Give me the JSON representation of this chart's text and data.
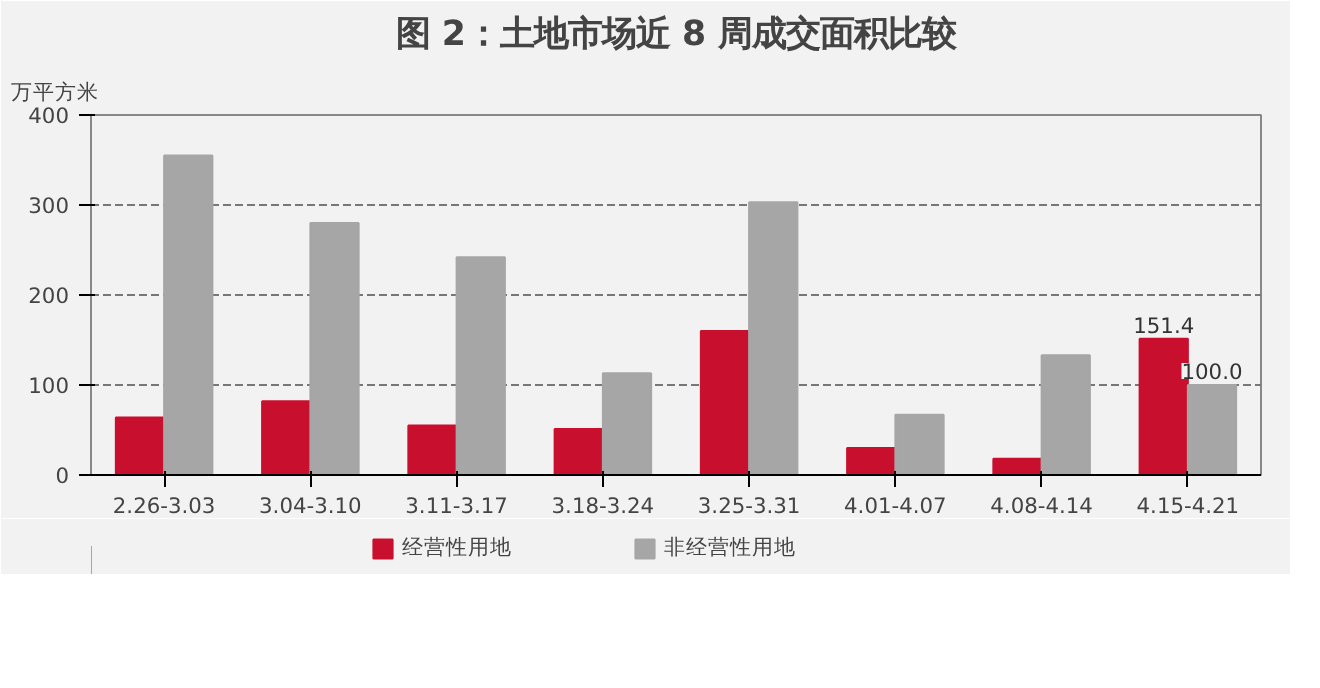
{
  "chart_data": {
    "type": "bar",
    "title": "图 2：土地市场近 8 周成交面积比较",
    "ylabel": "万平方米",
    "categories": [
      "2.26-3.03",
      "3.04-3.10",
      "3.11-3.17",
      "3.18-3.24",
      "3.25-3.31",
      "4.01-4.07",
      "4.08-4.14",
      "4.15-4.21"
    ],
    "series": [
      {
        "name": "经营性用地",
        "color": "#c8102e",
        "values": [
          64,
          82,
          55,
          51,
          160,
          30,
          18,
          151.4
        ],
        "value_labels": [
          null,
          null,
          null,
          null,
          null,
          null,
          null,
          "151.4"
        ]
      },
      {
        "name": "非经营性用地",
        "color": "#a6a6a6",
        "values": [
          355,
          280,
          242,
          113,
          303,
          67,
          133,
          100.0
        ],
        "value_labels": [
          null,
          null,
          null,
          null,
          null,
          null,
          null,
          "100.0"
        ]
      }
    ],
    "ylim": [
      0,
      400
    ],
    "yticks": [
      0,
      100,
      200,
      300,
      400
    ],
    "grid": "y",
    "legend": "bottom"
  }
}
